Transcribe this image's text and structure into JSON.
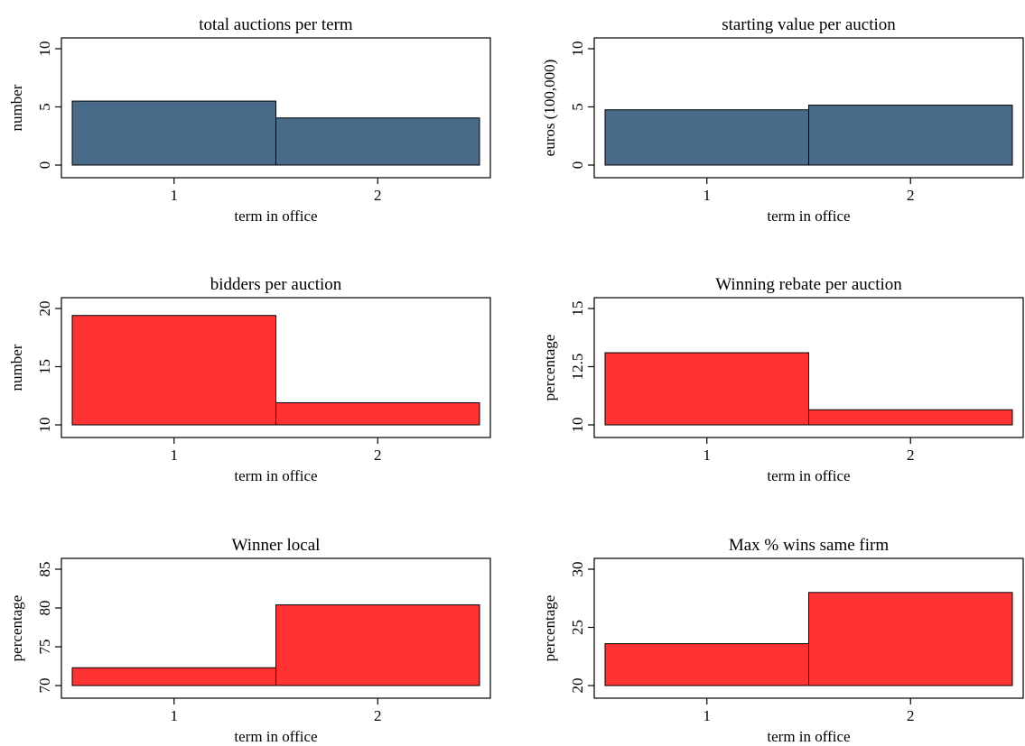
{
  "chart_data": [
    {
      "type": "bar",
      "title": "total auctions per term",
      "xlabel": "term in office",
      "ylabel": "number",
      "categories": [
        "1",
        "2"
      ],
      "values": [
        5.5,
        4.05
      ],
      "ylim": [
        0,
        10
      ],
      "base": 0,
      "yticks": [
        0,
        5,
        10
      ],
      "ytick_labels": [
        "0",
        "5",
        "10"
      ],
      "color": "#4a6a8a"
    },
    {
      "type": "bar",
      "title": "starting value per auction",
      "xlabel": "term in office",
      "ylabel": "euros (100,000)",
      "categories": [
        "1",
        "2"
      ],
      "values": [
        4.75,
        5.15
      ],
      "ylim": [
        0,
        10
      ],
      "base": 0,
      "yticks": [
        0,
        5,
        10
      ],
      "ytick_labels": [
        "0",
        "5",
        "10"
      ],
      "color": "#4a6a8a"
    },
    {
      "type": "bar",
      "title": "bidders per auction",
      "xlabel": "term in office",
      "ylabel": "number",
      "categories": [
        "1",
        "2"
      ],
      "values": [
        19.4,
        11.9
      ],
      "ylim": [
        10,
        20
      ],
      "base": 10,
      "yticks": [
        10,
        15,
        20
      ],
      "ytick_labels": [
        "10",
        "15",
        "20"
      ],
      "color": "#ff3333"
    },
    {
      "type": "bar",
      "title": "Winning rebate per auction",
      "xlabel": "term in office",
      "ylabel": "percentage",
      "categories": [
        "1",
        "2"
      ],
      "values": [
        13.1,
        10.65
      ],
      "ylim": [
        10,
        15
      ],
      "base": 10,
      "yticks": [
        10,
        12.5,
        15
      ],
      "ytick_labels": [
        "10",
        "12.5",
        "15"
      ],
      "color": "#ff3333"
    },
    {
      "type": "bar",
      "title": "Winner local",
      "xlabel": "term in office",
      "ylabel": "percentage",
      "categories": [
        "1",
        "2"
      ],
      "values": [
        72.3,
        80.4
      ],
      "ylim": [
        70,
        85
      ],
      "base": 70,
      "yticks": [
        70,
        75,
        80,
        85
      ],
      "ytick_labels": [
        "70",
        "75",
        "80",
        "85"
      ],
      "color": "#ff3333"
    },
    {
      "type": "bar",
      "title": "Max % wins same firm",
      "xlabel": "term in office",
      "ylabel": "percentage",
      "categories": [
        "1",
        "2"
      ],
      "values": [
        23.6,
        28.0
      ],
      "ylim": [
        20,
        30
      ],
      "base": 20,
      "yticks": [
        20,
        25,
        30
      ],
      "ytick_labels": [
        "20",
        "25",
        "30"
      ],
      "color": "#ff3333"
    }
  ]
}
